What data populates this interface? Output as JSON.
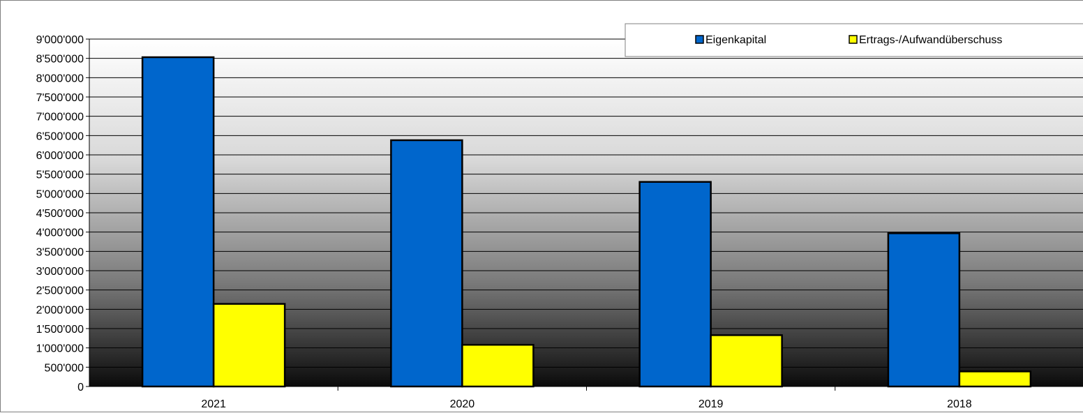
{
  "chart_data": {
    "type": "bar",
    "categories": [
      "2021",
      "2020",
      "2019",
      "2018"
    ],
    "series": [
      {
        "name": "Eigenkapital",
        "color": "#0066CC",
        "values": [
          8530000,
          6380000,
          5300000,
          3970000
        ]
      },
      {
        "name": "Ertrags-/Aufwandüberschuss",
        "color": "#FFFF00",
        "values": [
          2140000,
          1080000,
          1330000,
          390000
        ]
      }
    ],
    "ylim": [
      0,
      9000000
    ],
    "yticks": [
      0,
      500000,
      1000000,
      1500000,
      2000000,
      2500000,
      3000000,
      3500000,
      4000000,
      4500000,
      5000000,
      5500000,
      6000000,
      6500000,
      7000000,
      7500000,
      8000000,
      8500000,
      9000000
    ],
    "ytick_labels": [
      "0",
      "500'000",
      "1'000'000",
      "1'500'000",
      "2'000'000",
      "2'500'000",
      "3'000'000",
      "3'500'000",
      "4'000'000",
      "4'500'000",
      "5'000'000",
      "5'500'000",
      "6'000'000",
      "6'500'000",
      "7'000'000",
      "7'500'000",
      "8'000'000",
      "8'500'000",
      "9'000'000"
    ],
    "grid": true,
    "legend_position": "top-right",
    "background": "vertical gradient white to black"
  }
}
